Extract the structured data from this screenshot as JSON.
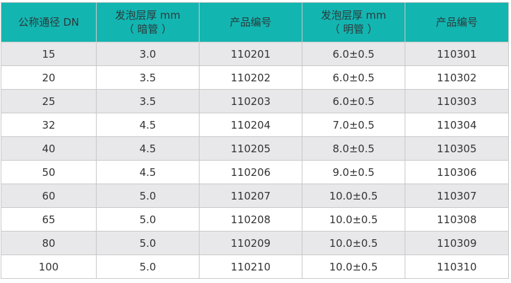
{
  "headers": [
    {
      "line1": "公称通径 DN",
      "line2": ""
    },
    {
      "line1": "发泡层厚 mm",
      "line2": "（ 暗管 ）"
    },
    {
      "line1": "产品编号",
      "line2": ""
    },
    {
      "line1": "发泡层厚 mm",
      "line2": "（ 明管 ）"
    },
    {
      "line1": "产品编号",
      "line2": ""
    }
  ],
  "rows": [
    [
      "15",
      "3.0",
      "110201",
      "6.0±0.5",
      "110301"
    ],
    [
      "20",
      "3.5",
      "110202",
      "6.0±0.5",
      "110302"
    ],
    [
      "25",
      "3.5",
      "110203",
      "6.0±0.5",
      "110303"
    ],
    [
      "32",
      "4.5",
      "110204",
      "7.0±0.5",
      "110304"
    ],
    [
      "40",
      "4.5",
      "110205",
      "8.0±0.5",
      "110305"
    ],
    [
      "50",
      "4.5",
      "110206",
      "9.0±0.5",
      "110306"
    ],
    [
      "60",
      "5.0",
      "110207",
      "10.0±0.5",
      "110307"
    ],
    [
      "65",
      "5.0",
      "110208",
      "10.0±0.5",
      "110308"
    ],
    [
      "80",
      "5.0",
      "110209",
      "10.0±0.5",
      "110309"
    ],
    [
      "100",
      "5.0",
      "110210",
      "10.0±0.5",
      "110310"
    ]
  ],
  "colors": {
    "header_bg": "#13b5b1",
    "stripe_bg": "#e8e8ea",
    "border": "#c9c9c9"
  }
}
